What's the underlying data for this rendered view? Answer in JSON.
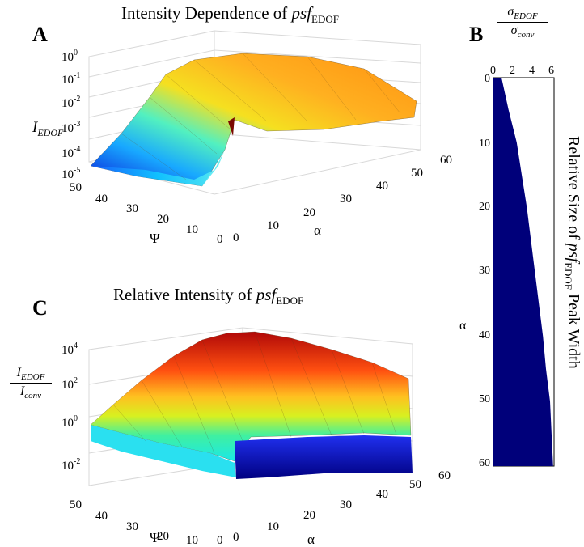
{
  "panels": {
    "a": {
      "letter": "A",
      "title_prefix": "Intensity Dependence of ",
      "title_italic": "psf",
      "title_sub": "EDOF",
      "zlabel_main": "I",
      "zlabel_sub": "EDOF",
      "z_ticks_exp": [
        "0",
        "-1",
        "-2",
        "-3",
        "-4",
        "-5"
      ],
      "psi_ticks": [
        "50",
        "40",
        "30",
        "20",
        "10",
        "0"
      ],
      "alpha_ticks": [
        "0",
        "10",
        "20",
        "30",
        "40",
        "50",
        "60"
      ],
      "psi_label": "Ψ",
      "alpha_label": "α"
    },
    "b": {
      "letter": "B",
      "top_num": "σ",
      "top_num_sub": "EDOF",
      "top_den": "σ",
      "top_den_sub": "conv",
      "x_ticks": [
        "0",
        "2",
        "4",
        "6"
      ],
      "y_ticks": [
        "0",
        "10",
        "20",
        "30",
        "40",
        "50",
        "60"
      ],
      "ylabel": "α",
      "side_title_prefix": "Relative Size of ",
      "side_title_italic": "psf",
      "side_title_sub": "EDOF",
      "side_title_suffix": " Peak Width",
      "fill_color": "#00007a"
    },
    "c": {
      "letter": "C",
      "title_prefix": "Relative Intensity of ",
      "title_italic": "psf",
      "title_sub": "EDOF",
      "zlabel_num": "I",
      "zlabel_num_sub": "EDOF",
      "zlabel_den": "I",
      "zlabel_den_sub": "conv",
      "z_ticks_exp": [
        "4",
        "2",
        "0",
        "-2"
      ],
      "psi_ticks": [
        "50",
        "40",
        "30",
        "20",
        "10",
        "0"
      ],
      "alpha_ticks": [
        "0",
        "10",
        "20",
        "30",
        "40",
        "50",
        "60"
      ],
      "psi_label": "Ψ",
      "alpha_label": "α"
    }
  },
  "chart_data": [
    {
      "type": "surface",
      "panel": "A",
      "title": "Intensity Dependence of psf EDOF",
      "xlabel": "α",
      "ylabel": "Ψ",
      "zlabel": "I_EDOF",
      "xlim": [
        0,
        60
      ],
      "ylim": [
        0,
        50
      ],
      "zscale": "log",
      "zlim": [
        1e-05,
        1
      ],
      "colormap": "jet",
      "grid": true,
      "description_values": {
        "psi": [
          0,
          10,
          20,
          30,
          40,
          50
        ],
        "alpha": [
          0,
          10,
          20,
          30,
          40,
          50,
          60
        ],
        "log10_I_at_alpha0": [
          -2.5,
          -3.4,
          -4.2,
          -4.6,
          -4.8,
          -5.0
        ],
        "log10_I_ridge": -0.3,
        "log10_I_at_alpha60_psi0": -1.8
      }
    },
    {
      "type": "area",
      "panel": "B",
      "title": "Relative Size of psf EDOF Peak Width",
      "xlabel": "σEDOF/σconv",
      "ylabel": "α",
      "xlim": [
        0,
        6
      ],
      "ylim": [
        0,
        60
      ],
      "y_axis_reversed": true,
      "x": [
        0.8,
        1.5,
        2.3,
        2.8,
        3.3,
        3.7,
        4.1,
        4.5,
        4.9,
        5.2,
        5.6,
        5.9
      ],
      "y": [
        0,
        5,
        10,
        15,
        20,
        25,
        30,
        35,
        40,
        45,
        50,
        60
      ]
    },
    {
      "type": "surface",
      "panel": "C",
      "title": "Relative Intensity of psf EDOF",
      "xlabel": "α",
      "ylabel": "Ψ",
      "zlabel": "I_EDOF / I_conv",
      "xlim": [
        0,
        60
      ],
      "ylim": [
        0,
        50
      ],
      "zscale": "log",
      "zlim": [
        0.01,
        10000
      ],
      "colormap": "jet",
      "grid": true,
      "description_values": {
        "log10_ratio_peak": 3.8,
        "log10_ratio_at_alpha0": 0.0,
        "log10_ratio_at_psi0": -1.5
      }
    }
  ]
}
